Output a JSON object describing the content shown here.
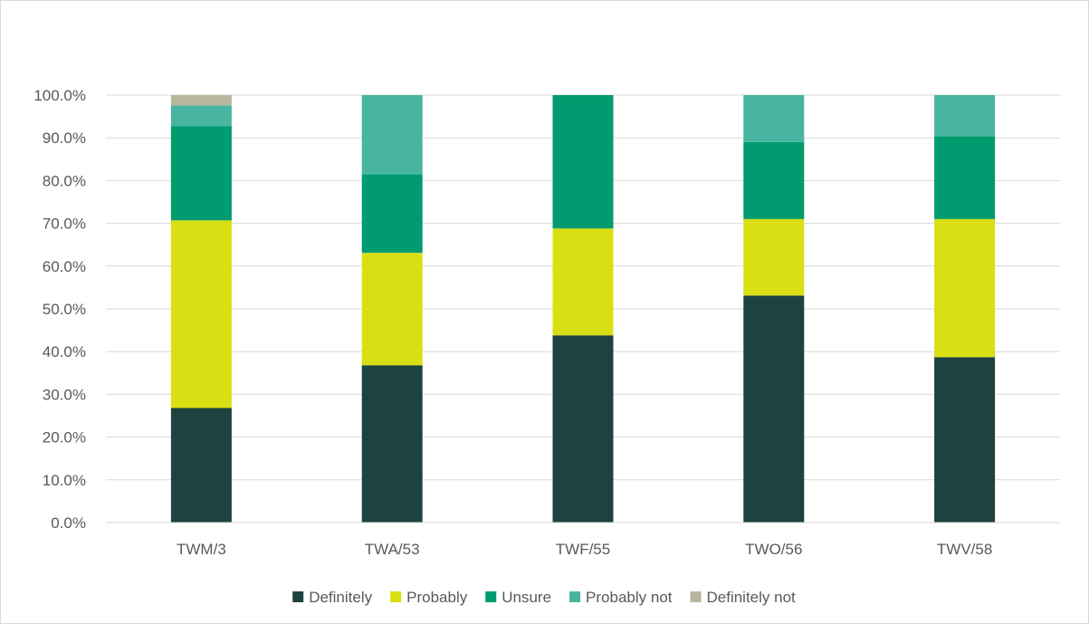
{
  "chart_data": {
    "type": "bar",
    "stacked": true,
    "categories": [
      "TWM/3",
      "TWA/53",
      "TWF/55",
      "TWO/56",
      "TWV/58"
    ],
    "series": [
      {
        "name": "Definitely",
        "color": "#1e4240",
        "values": [
          26.8,
          36.8,
          43.8,
          53.1,
          38.7
        ]
      },
      {
        "name": "Probably",
        "color": "#d9df12",
        "values": [
          43.9,
          26.3,
          25.0,
          17.9,
          32.3
        ]
      },
      {
        "name": "Unsure",
        "color": "#009b6e",
        "values": [
          22.0,
          18.4,
          31.2,
          18.0,
          19.4
        ]
      },
      {
        "name": "Probably not",
        "color": "#48b5a0",
        "values": [
          4.9,
          18.5,
          0.0,
          11.0,
          9.6
        ]
      },
      {
        "name": "Definitely not",
        "color": "#b9b69e",
        "values": [
          2.4,
          0.0,
          0.0,
          0.0,
          0.0
        ]
      }
    ],
    "y_ticks": [
      "0.0%",
      "10.0%",
      "20.0%",
      "30.0%",
      "40.0%",
      "50.0%",
      "60.0%",
      "70.0%",
      "80.0%",
      "90.0%",
      "100.0%"
    ],
    "ylim": [
      0,
      100
    ],
    "grid": true,
    "legend_position": "bottom",
    "gridline_color": "#d9d9d9",
    "text_color": "#595959"
  }
}
